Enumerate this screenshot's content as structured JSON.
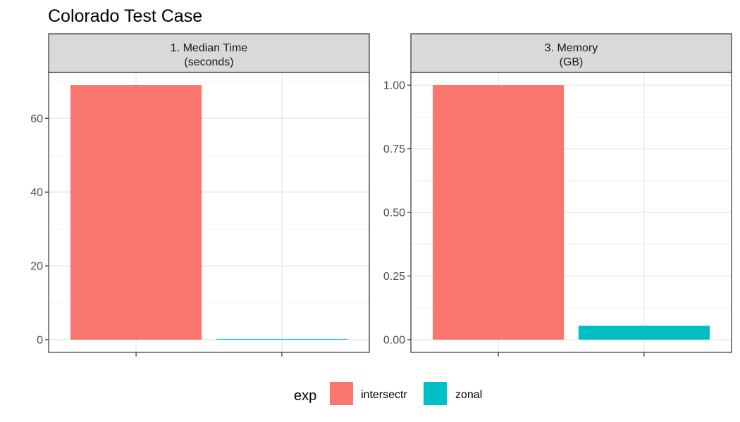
{
  "chart_data": {
    "type": "bar",
    "title": "Colorado Test Case",
    "categories": [
      "intersectr",
      "zonal"
    ],
    "colors": {
      "intersectr": "#F8766D",
      "zonal": "#00BFC4"
    },
    "legend": {
      "title": "exp",
      "placement": "bottom",
      "entries": [
        "intersectr",
        "zonal"
      ]
    },
    "facets": [
      {
        "strip_line1": "1. Median Time",
        "strip_line2": "(seconds)",
        "values": [
          69,
          0.1
        ],
        "ylim": [
          -3.45,
          72.45
        ],
        "y_ticks": [
          0,
          20,
          40,
          60
        ],
        "y_tick_labels": [
          "0",
          "20",
          "40",
          "60"
        ],
        "y_minor_ticks": [
          10,
          30,
          50,
          70
        ]
      },
      {
        "strip_line1": "3. Memory",
        "strip_line2": "(GB)",
        "values": [
          1.0,
          0.055
        ],
        "ylim": [
          -0.05,
          1.05
        ],
        "y_ticks": [
          0,
          0.25,
          0.5,
          0.75,
          1.0
        ],
        "y_tick_labels": [
          "0.00",
          "0.25",
          "0.50",
          "0.75",
          "1.00"
        ],
        "y_minor_ticks": [
          0.125,
          0.375,
          0.625,
          0.875
        ]
      }
    ]
  }
}
